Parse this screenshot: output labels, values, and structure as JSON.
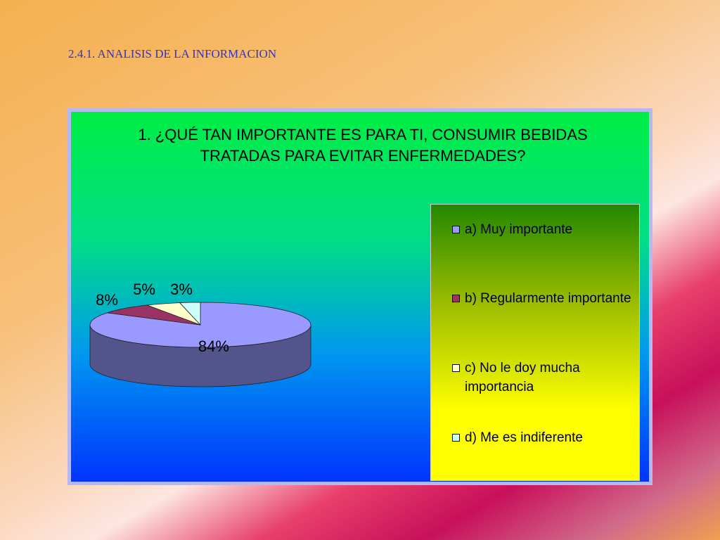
{
  "heading": "2.4.1.  ANALISIS DE LA INFORMACION",
  "chart_data": {
    "type": "pie",
    "title": "1. ¿QUÉ TAN IMPORTANTE ES PARA TI, CONSUMIR BEBIDAS TRATADAS PARA EVITAR ENFERMEDADES?",
    "categories": [
      "a) Muy importante",
      "b) Regularmente importante",
      "c) No le doy mucha importancia",
      "d) Me es indiferente"
    ],
    "values": [
      84,
      8,
      5,
      3
    ],
    "value_labels": [
      "84%",
      "8%",
      "5%",
      "3%"
    ],
    "colors": [
      "#9999ff",
      "#993366",
      "#ffffcc",
      "#ccffff"
    ],
    "legend": "right"
  }
}
